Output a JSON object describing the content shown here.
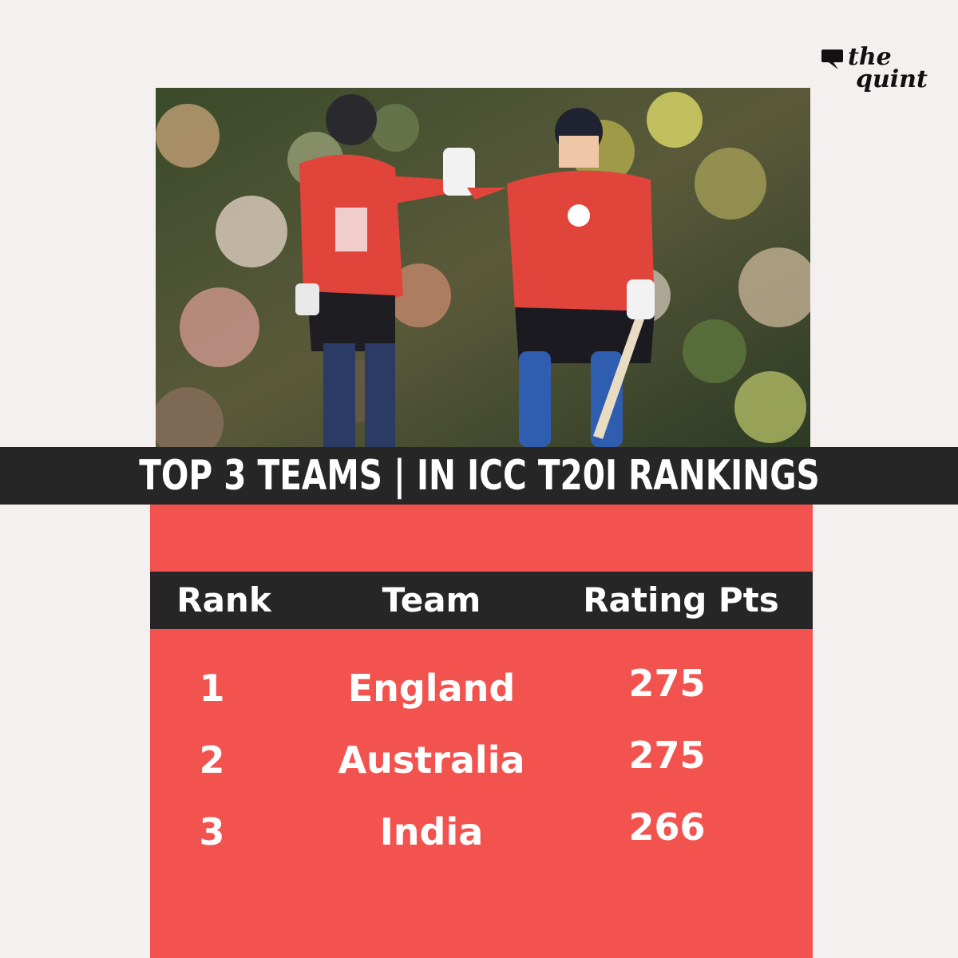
{
  "brand": {
    "logo_line1": "the",
    "logo_line2": "quint",
    "logo_icon": "speech-bubble-icon"
  },
  "photo": {
    "description_icon": "cricket-players-photo"
  },
  "title": "TOP 3 TEAMS | IN ICC T20I RANKINGS",
  "table": {
    "headers": {
      "rank": "Rank",
      "team": "Team",
      "points": "Rating Pts"
    },
    "rows": [
      {
        "rank": "1",
        "team": "England",
        "points": "275"
      },
      {
        "rank": "2",
        "team": "Australia",
        "points": "275"
      },
      {
        "rank": "3",
        "team": "India",
        "points": "266"
      }
    ]
  },
  "colors": {
    "background": "#f4f0ef",
    "band": "#262626",
    "panel": "#f2534f",
    "text": "#ffffff"
  }
}
